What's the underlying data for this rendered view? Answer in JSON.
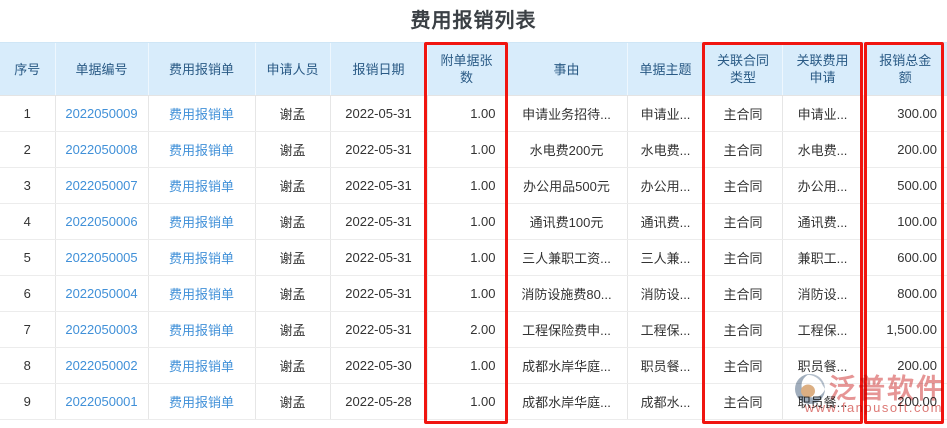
{
  "page": {
    "title": "费用报销列表"
  },
  "table": {
    "columns": [
      {
        "key": "index",
        "label": "序号"
      },
      {
        "key": "doc_no",
        "label": "单据编号",
        "link": true
      },
      {
        "key": "form",
        "label": "费用报销单",
        "link": true
      },
      {
        "key": "applicant",
        "label": "申请人员"
      },
      {
        "key": "date",
        "label": "报销日期"
      },
      {
        "key": "attachments",
        "label": "附单据张数",
        "align": "right",
        "highlighted": true
      },
      {
        "key": "reason",
        "label": "事由"
      },
      {
        "key": "subject",
        "label": "单据主题"
      },
      {
        "key": "contract_type",
        "label": "关联合同类型",
        "highlighted": true
      },
      {
        "key": "expense_request",
        "label": "关联费用申请",
        "highlighted": true
      },
      {
        "key": "total",
        "label": "报销总金额",
        "align": "right",
        "highlighted": true
      }
    ],
    "rows": [
      [
        "1",
        "2022050009",
        "费用报销单",
        "谢孟",
        "2022-05-31",
        "1.00",
        "申请业务招待...",
        "申请业...",
        "主合同",
        "申请业...",
        "300.00"
      ],
      [
        "2",
        "2022050008",
        "费用报销单",
        "谢孟",
        "2022-05-31",
        "1.00",
        "水电费200元",
        "水电费...",
        "主合同",
        "水电费...",
        "200.00"
      ],
      [
        "3",
        "2022050007",
        "费用报销单",
        "谢孟",
        "2022-05-31",
        "1.00",
        "办公用品500元",
        "办公用...",
        "主合同",
        "办公用...",
        "500.00"
      ],
      [
        "4",
        "2022050006",
        "费用报销单",
        "谢孟",
        "2022-05-31",
        "1.00",
        "通讯费100元",
        "通讯费...",
        "主合同",
        "通讯费...",
        "100.00"
      ],
      [
        "5",
        "2022050005",
        "费用报销单",
        "谢孟",
        "2022-05-31",
        "1.00",
        "三人兼职工资...",
        "三人兼...",
        "主合同",
        "兼职工...",
        "600.00"
      ],
      [
        "6",
        "2022050004",
        "费用报销单",
        "谢孟",
        "2022-05-31",
        "1.00",
        "消防设施费80...",
        "消防设...",
        "主合同",
        "消防设...",
        "800.00"
      ],
      [
        "7",
        "2022050003",
        "费用报销单",
        "谢孟",
        "2022-05-31",
        "2.00",
        "工程保险费申...",
        "工程保...",
        "主合同",
        "工程保...",
        "1,500.00"
      ],
      [
        "8",
        "2022050002",
        "费用报销单",
        "谢孟",
        "2022-05-30",
        "1.00",
        "成都水岸华庭...",
        "职员餐...",
        "主合同",
        "职员餐...",
        "200.00"
      ],
      [
        "9",
        "2022050001",
        "费用报销单",
        "谢孟",
        "2022-05-28",
        "1.00",
        "成都水岸华庭...",
        "成都水...",
        "主合同",
        "职员餐...",
        "200.00"
      ]
    ]
  },
  "annotations": {
    "highlight_color": "#f01510",
    "highlighted_columns": [
      "附单据张数",
      "关联合同类型",
      "关联费用申请",
      "报销总金额"
    ]
  },
  "watermark": {
    "brand": "泛普软件",
    "url": "www.fanpusoft.com",
    "logo": "fanpu-logo",
    "brand_color": "#e48c8c"
  }
}
